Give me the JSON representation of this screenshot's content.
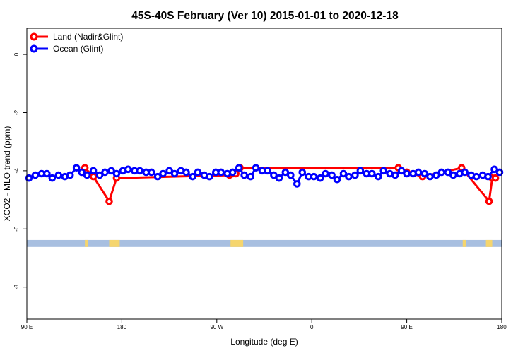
{
  "chart_data": {
    "type": "line",
    "title": "45S-40S February (Ver 10)   2015-01-01 to 2020-12-18",
    "xlabel": "Longitude (deg E)",
    "ylabel": "XCO2 - MLO trend (ppm)",
    "x_tick_labels": [
      "90 E",
      "180",
      "90 W",
      "0",
      "90 E",
      "180"
    ],
    "x_tick_values": [
      90,
      180,
      270,
      360,
      450,
      540
    ],
    "xlim": [
      90,
      540
    ],
    "y_tick_labels": [
      "-8",
      "-6",
      "-4",
      "-2",
      "0"
    ],
    "y_tick_values": [
      -8,
      -6,
      -4,
      -2,
      0
    ],
    "ylim": [
      -9.1,
      0.9
    ],
    "grid": false,
    "legend_position": "top-left",
    "series": [
      {
        "name": "Land (Nadir&Glint)",
        "color": "#ff0000",
        "x": [
          145,
          153,
          168,
          175,
          282,
          285,
          288,
          292,
          442,
          450,
          465,
          502,
          528,
          531,
          534
        ],
        "y": [
          -3.9,
          -4.2,
          -5.05,
          -4.25,
          -4.15,
          -4.1,
          -4.1,
          -3.9,
          -3.9,
          -4.05,
          -4.2,
          -3.9,
          -5.05,
          -4.25,
          -4.25
        ]
      },
      {
        "name": "Ocean (Glint)",
        "color": "#0000ff",
        "x": [
          92,
          98,
          104,
          109,
          114,
          120,
          126,
          131,
          137,
          142,
          147,
          153,
          159,
          164,
          170,
          175,
          181,
          186,
          192,
          197,
          203,
          208,
          214,
          219,
          225,
          230,
          236,
          241,
          247,
          252,
          258,
          263,
          269,
          274,
          280,
          285,
          291,
          296,
          302,
          307,
          313,
          318,
          324,
          329,
          335,
          340,
          346,
          351,
          357,
          362,
          368,
          373,
          379,
          384,
          390,
          395,
          401,
          406,
          412,
          417,
          423,
          428,
          434,
          439,
          445,
          450,
          456,
          461,
          467,
          472,
          478,
          483,
          489,
          494,
          500,
          505,
          511,
          516,
          522,
          527,
          533,
          538
        ],
        "y": [
          -4.25,
          -4.15,
          -4.1,
          -4.1,
          -4.25,
          -4.15,
          -4.2,
          -4.15,
          -3.9,
          -4.05,
          -4.15,
          -4.0,
          -4.15,
          -4.05,
          -4.0,
          -4.1,
          -4.0,
          -3.95,
          -4.0,
          -4.0,
          -4.05,
          -4.05,
          -4.2,
          -4.1,
          -4.0,
          -4.1,
          -4.0,
          -4.05,
          -4.2,
          -4.05,
          -4.15,
          -4.2,
          -4.05,
          -4.05,
          -4.1,
          -4.05,
          -3.9,
          -4.15,
          -4.2,
          -3.9,
          -4.0,
          -4.0,
          -4.15,
          -4.25,
          -4.05,
          -4.15,
          -4.45,
          -4.05,
          -4.2,
          -4.2,
          -4.25,
          -4.1,
          -4.15,
          -4.3,
          -4.1,
          -4.2,
          -4.15,
          -4.0,
          -4.1,
          -4.1,
          -4.2,
          -4.0,
          -4.1,
          -4.15,
          -4.0,
          -4.1,
          -4.1,
          -4.05,
          -4.1,
          -4.2,
          -4.15,
          -4.05,
          -4.05,
          -4.15,
          -4.1,
          -4.05,
          -4.15,
          -4.2,
          -4.15,
          -4.2,
          -3.95,
          -4.05
        ]
      }
    ],
    "land_mask_band": {
      "y_range": [
        -6.62,
        -6.38
      ],
      "ocean_color": "#a8bfe0",
      "land_color": "#f5d56e",
      "land_x_ranges": [
        [
          145,
          148
        ],
        [
          168,
          178
        ],
        [
          283,
          295
        ],
        [
          503,
          506
        ],
        [
          525,
          531
        ]
      ]
    }
  }
}
